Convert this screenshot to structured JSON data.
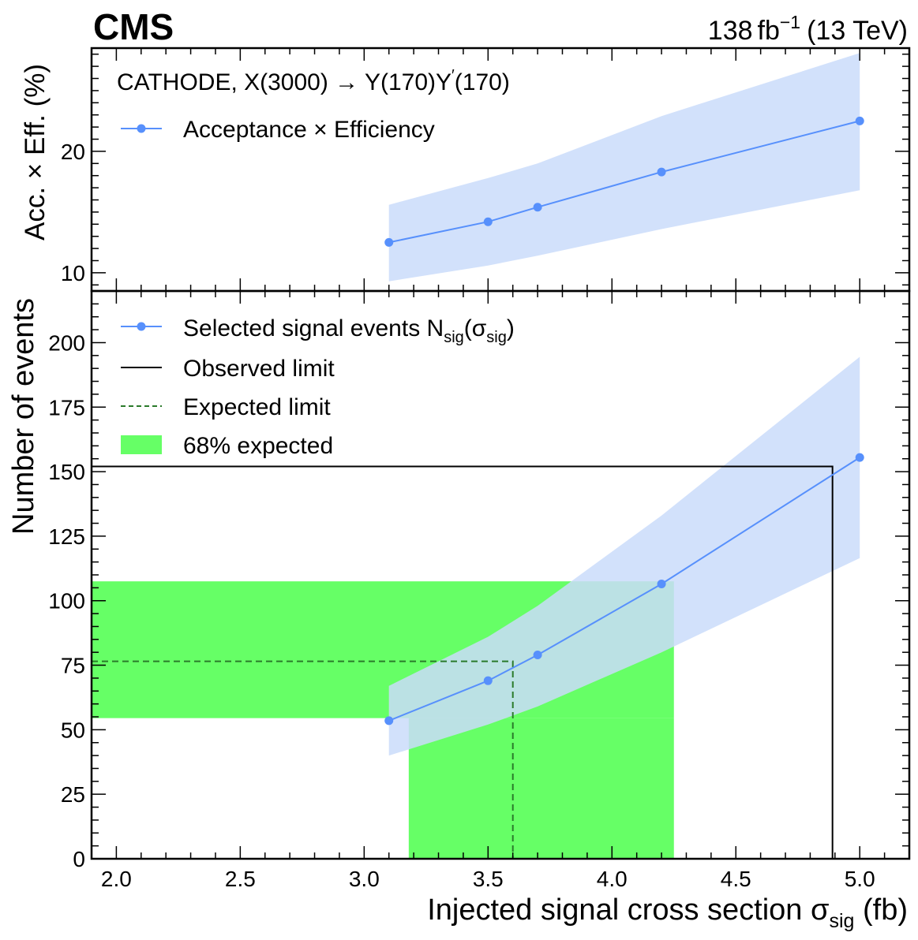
{
  "header": {
    "experiment": "CMS",
    "lumi_value": "138",
    "lumi_unit": "fb",
    "lumi_exp": "−1",
    "energy": "(13 TeV)"
  },
  "chart_data": [
    {
      "type": "line",
      "panel": "top",
      "ylabel": "Acc. × Eff.  (%)",
      "annotation": {
        "prefix": "CATHODE, X(3000) → Y(170)Y",
        "prime": "′",
        "suffix": "(170)"
      },
      "ylim": [
        8.5,
        28.5
      ],
      "yticks": [
        10,
        20
      ],
      "series": [
        {
          "name": "Acceptance × Efficiency",
          "color": "#5790fc",
          "x": [
            3.1,
            3.5,
            3.7,
            4.2,
            5.0
          ],
          "y": [
            12.5,
            14.2,
            15.4,
            18.3,
            22.5
          ],
          "band_upper": [
            15.6,
            17.8,
            19.0,
            22.9,
            28.1
          ],
          "band_lower": [
            9.3,
            10.6,
            11.4,
            13.6,
            16.8
          ],
          "band_color": "#cadcfa"
        }
      ]
    },
    {
      "type": "line",
      "panel": "bottom",
      "xlabel": "Injected signal cross section σ",
      "xlabel_sub": "sig",
      "xlabel_unit": " (fb)",
      "ylabel": "Number of events",
      "xlim": [
        1.9,
        5.2
      ],
      "ylim": [
        0,
        220
      ],
      "xticks": [
        "2.0",
        "2.5",
        "3.0",
        "3.5",
        "4.0",
        "4.5",
        "5.0"
      ],
      "yticks": [
        0,
        25,
        50,
        75,
        100,
        125,
        150,
        175,
        200
      ],
      "series": [
        {
          "name": "Selected signal events N",
          "name_sub": "sig",
          "name_tail": "(σ",
          "name_sub2": "sig",
          "name_end": ")",
          "color": "#5790fc",
          "x": [
            3.1,
            3.5,
            3.7,
            4.2,
            5.0
          ],
          "y": [
            53.5,
            69,
            79,
            106.5,
            155.5
          ],
          "band_upper": [
            67,
            86,
            98,
            133,
            194.5
          ],
          "band_lower": [
            40,
            52,
            59,
            80,
            116.5
          ],
          "band_color": "#cadcfa"
        }
      ],
      "observed_limit": {
        "name": "Observed limit",
        "x": 4.89,
        "y": 152,
        "color": "#000000"
      },
      "expected_limit": {
        "name": "Expected limit",
        "x": 3.6,
        "y": 76.5,
        "color": "#2a7a2a"
      },
      "expected_band": {
        "name": "68% expected",
        "x_range": [
          3.18,
          4.25
        ],
        "y_range": [
          54.5,
          107.5
        ],
        "color": "#66ff66"
      }
    }
  ]
}
